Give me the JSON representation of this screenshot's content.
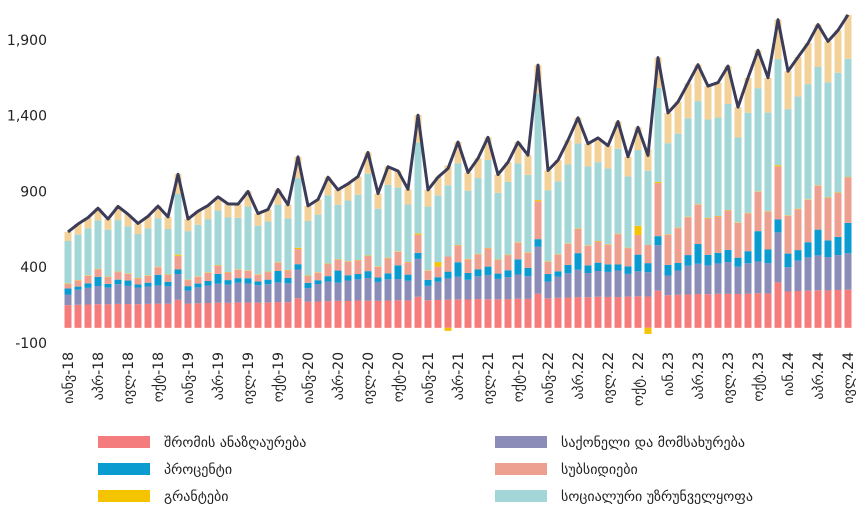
{
  "chart_data": {
    "type": "stacked_bar",
    "categories": [
      "იანვ-18",
      null,
      null,
      "აპრ-18",
      null,
      null,
      "ივლ-18",
      null,
      null,
      "ოქტ-18",
      null,
      null,
      "იანვ-19",
      null,
      null,
      "აპრ-19",
      null,
      null,
      "ივლ-19",
      null,
      null,
      "ოქტ-19",
      null,
      null,
      "იანვ-20",
      null,
      null,
      "აპრ-20",
      null,
      null,
      "ივლ-20",
      null,
      null,
      "ოქტ-20",
      null,
      null,
      "იანვ-21",
      null,
      null,
      "აპრ-21",
      null,
      null,
      "ივლ-21",
      null,
      null,
      "ოქტ-21",
      null,
      null,
      "იანვ-22",
      null,
      null,
      "აპრ.22",
      null,
      null,
      "ივლ.22",
      null,
      null,
      "ოქტ. 22",
      null,
      null,
      "იან.23",
      null,
      null,
      "აპრ.23",
      null,
      null,
      "ივლ.23",
      null,
      null,
      "ოქტ.23",
      null,
      null,
      "იან.24",
      null,
      null,
      "აპრ.24",
      null,
      null,
      "ივლ.24"
    ],
    "ylim": [
      -100,
      2130
    ],
    "yticks": [
      -100,
      400,
      900,
      {
        "value": 1400,
        "label": "1,400"
      },
      {
        "value": 1900,
        "label": "1,900"
      }
    ],
    "total_line": {
      "color": "#3b3b5a"
    },
    "series": [
      {
        "name": "შრომის ანაზღაურება",
        "color": "#f47c7c",
        "values": [
          150,
          152,
          154,
          156,
          155,
          158,
          157,
          156,
          158,
          160,
          159,
          185,
          160,
          162,
          164,
          166,
          165,
          168,
          167,
          166,
          168,
          170,
          169,
          195,
          172,
          174,
          176,
          178,
          177,
          180,
          179,
          178,
          180,
          182,
          181,
          205,
          182,
          184,
          186,
          188,
          187,
          190,
          189,
          188,
          190,
          192,
          191,
          225,
          195,
          198,
          200,
          203,
          202,
          205,
          204,
          203,
          206,
          208,
          207,
          245,
          215,
          218,
          220,
          223,
          222,
          225,
          224,
          223,
          226,
          228,
          227,
          300,
          240,
          243,
          245,
          248,
          247,
          250,
          252
        ]
      },
      {
        "name": "საქონელი და მომსახურება",
        "color": "#8c8cb8",
        "values": [
          70,
          100,
          110,
          120,
          110,
          130,
          120,
          110,
          115,
          120,
          115,
          170,
          85,
          105,
          115,
          125,
          120,
          130,
          125,
          115,
          120,
          130,
          125,
          190,
          90,
          115,
          130,
          120,
          135,
          140,
          150,
          125,
          140,
          140,
          130,
          250,
          95,
          120,
          140,
          150,
          130,
          150,
          160,
          135,
          145,
          160,
          150,
          310,
          110,
          140,
          160,
          180,
          160,
          170,
          165,
          175,
          150,
          165,
          160,
          300,
          130,
          160,
          190,
          200,
          190,
          200,
          210,
          180,
          200,
          210,
          200,
          330,
          160,
          200,
          220,
          230,
          220,
          230,
          240
        ]
      },
      {
        "name": "პროცენტი",
        "color": "#0a9bd0",
        "values": [
          40,
          20,
          30,
          60,
          25,
          30,
          35,
          20,
          25,
          70,
          30,
          30,
          30,
          25,
          30,
          65,
          30,
          30,
          35,
          25,
          30,
          75,
          35,
          35,
          35,
          25,
          35,
          80,
          35,
          35,
          45,
          30,
          40,
          90,
          40,
          40,
          40,
          30,
          45,
          95,
          45,
          45,
          55,
          35,
          45,
          100,
          55,
          50,
          50,
          35,
          55,
          110,
          50,
          55,
          50,
          40,
          50,
          110,
          60,
          60,
          70,
          50,
          70,
          130,
          70,
          70,
          80,
          60,
          80,
          200,
          90,
          85,
          90,
          70,
          100,
          170,
          110,
          120,
          200
        ]
      },
      {
        "name": "სუბსიდიები",
        "color": "#eea090",
        "values": [
          30,
          40,
          50,
          50,
          45,
          50,
          45,
          40,
          45,
          50,
          45,
          90,
          40,
          45,
          55,
          55,
          50,
          55,
          50,
          45,
          50,
          55,
          50,
          100,
          45,
          50,
          80,
          70,
          90,
          90,
          100,
          70,
          100,
          90,
          80,
          120,
          60,
          70,
          100,
          110,
          90,
          100,
          120,
          90,
          100,
          110,
          100,
          250,
          80,
          110,
          140,
          160,
          130,
          140,
          130,
          200,
          120,
          130,
          120,
          350,
          200,
          230,
          250,
          260,
          240,
          240,
          260,
          230,
          250,
          260,
          250,
          350,
          250,
          270,
          280,
          290,
          280,
          290,
          300
        ]
      },
      {
        "name": "გრანტები",
        "color": "#f5c400",
        "values": [
          3,
          3,
          3,
          3,
          3,
          3,
          3,
          3,
          3,
          3,
          3,
          8,
          3,
          3,
          3,
          3,
          3,
          3,
          3,
          3,
          3,
          3,
          3,
          8,
          3,
          3,
          3,
          3,
          3,
          3,
          3,
          3,
          3,
          3,
          3,
          8,
          3,
          30,
          -20,
          3,
          3,
          3,
          3,
          3,
          3,
          3,
          3,
          8,
          3,
          3,
          3,
          3,
          3,
          3,
          3,
          3,
          3,
          60,
          -40,
          8,
          3,
          3,
          3,
          3,
          3,
          3,
          3,
          3,
          3,
          3,
          3,
          8,
          3,
          3,
          3,
          3,
          3,
          3,
          3
        ]
      },
      {
        "name": "სოციალური უზრუნველყოფა",
        "color": "#a3d6d6",
        "values": [
          280,
          300,
          310,
          320,
          310,
          340,
          310,
          290,
          310,
          320,
          300,
          400,
          320,
          340,
          350,
          360,
          360,
          340,
          420,
          320,
          330,
          380,
          340,
          460,
          360,
          380,
          450,
          360,
          400,
          430,
          540,
          380,
          480,
          420,
          380,
          600,
          420,
          440,
          470,
          540,
          450,
          500,
          580,
          440,
          480,
          520,
          510,
          700,
          470,
          480,
          520,
          560,
          520,
          520,
          500,
          560,
          470,
          500,
          490,
          620,
          600,
          620,
          650,
          680,
          650,
          650,
          700,
          560,
          660,
          680,
          650,
          700,
          700,
          740,
          760,
          780,
          760,
          790,
          780
        ]
      },
      {
        "color": "#f3d29a",
        "values": [
          60,
          70,
          70,
          80,
          70,
          90,
          80,
          70,
          80,
          80,
          80,
          130,
          80,
          90,
          90,
          90,
          90,
          90,
          100,
          80,
          80,
          100,
          90,
          140,
          100,
          100,
          120,
          100,
          110,
          120,
          140,
          100,
          120,
          110,
          100,
          180,
          110,
          120,
          130,
          140,
          120,
          130,
          150,
          120,
          130,
          140,
          130,
          190,
          130,
          140,
          160,
          170,
          150,
          160,
          150,
          180,
          130,
          150,
          140,
          200,
          200,
          210,
          230,
          240,
          220,
          230,
          250,
          200,
          230,
          250,
          230,
          260,
          250,
          260,
          270,
          280,
          270,
          280,
          290
        ]
      }
    ]
  }
}
